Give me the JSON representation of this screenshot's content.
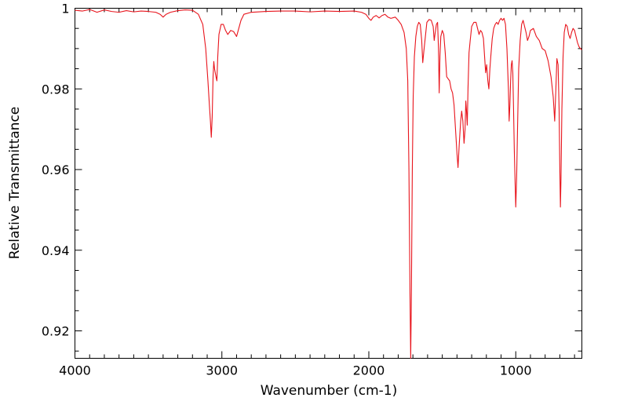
{
  "chart_data": {
    "type": "line",
    "title": "",
    "xlabel": "Wavenumber (cm-1)",
    "ylabel": "Relative Transmittance",
    "xlim": [
      4000,
      550
    ],
    "ylim": [
      0.9132,
      1.0
    ],
    "x_reversed": true,
    "grid": false,
    "legend": "none",
    "x_ticks": [
      4000,
      3000,
      2000,
      1000
    ],
    "x_tick_labels": [
      "4000",
      "3000",
      "2000",
      "1000"
    ],
    "y_ticks": [
      0.92,
      0.94,
      0.96,
      0.98,
      1.0
    ],
    "y_tick_labels": [
      "0.92",
      "0.94",
      "0.96",
      "0.98",
      "1"
    ],
    "series": [
      {
        "color": "#e8141c",
        "points": [
          [
            4000,
            0.9995
          ],
          [
            3950,
            0.9993
          ],
          [
            3900,
            0.9997
          ],
          [
            3850,
            0.999
          ],
          [
            3800,
            0.9996
          ],
          [
            3750,
            0.9992
          ],
          [
            3700,
            0.999
          ],
          [
            3650,
            0.9994
          ],
          [
            3600,
            0.9991
          ],
          [
            3550,
            0.9993
          ],
          [
            3500,
            0.9992
          ],
          [
            3450,
            0.999
          ],
          [
            3420,
            0.9985
          ],
          [
            3400,
            0.9978
          ],
          [
            3380,
            0.9985
          ],
          [
            3350,
            0.999
          ],
          [
            3300,
            0.9994
          ],
          [
            3250,
            0.9996
          ],
          [
            3200,
            0.9995
          ],
          [
            3160,
            0.9985
          ],
          [
            3130,
            0.996
          ],
          [
            3110,
            0.99
          ],
          [
            3095,
            0.982
          ],
          [
            3085,
            0.976
          ],
          [
            3078,
            0.972
          ],
          [
            3072,
            0.968
          ],
          [
            3066,
            0.973
          ],
          [
            3060,
            0.983
          ],
          [
            3055,
            0.9868
          ],
          [
            3050,
            0.985
          ],
          [
            3040,
            0.983
          ],
          [
            3034,
            0.982
          ],
          [
            3028,
            0.988
          ],
          [
            3020,
            0.9935
          ],
          [
            3005,
            0.996
          ],
          [
            2990,
            0.996
          ],
          [
            2975,
            0.9945
          ],
          [
            2960,
            0.9935
          ],
          [
            2940,
            0.9945
          ],
          [
            2920,
            0.9942
          ],
          [
            2900,
            0.993
          ],
          [
            2885,
            0.995
          ],
          [
            2870,
            0.997
          ],
          [
            2850,
            0.9985
          ],
          [
            2800,
            0.999
          ],
          [
            2700,
            0.9992
          ],
          [
            2600,
            0.9993
          ],
          [
            2500,
            0.9993
          ],
          [
            2400,
            0.9991
          ],
          [
            2300,
            0.9993
          ],
          [
            2200,
            0.9992
          ],
          [
            2100,
            0.9993
          ],
          [
            2050,
            0.999
          ],
          [
            2020,
            0.9985
          ],
          [
            2000,
            0.9975
          ],
          [
            1985,
            0.997
          ],
          [
            1970,
            0.9978
          ],
          [
            1950,
            0.9982
          ],
          [
            1930,
            0.9976
          ],
          [
            1910,
            0.9982
          ],
          [
            1890,
            0.9985
          ],
          [
            1870,
            0.9978
          ],
          [
            1850,
            0.9975
          ],
          [
            1820,
            0.9978
          ],
          [
            1800,
            0.997
          ],
          [
            1780,
            0.996
          ],
          [
            1760,
            0.994
          ],
          [
            1745,
            0.99
          ],
          [
            1735,
            0.982
          ],
          [
            1727,
            0.96
          ],
          [
            1720,
            0.93
          ],
          [
            1715,
            0.9132
          ],
          [
            1710,
            0.93
          ],
          [
            1704,
            0.96
          ],
          [
            1698,
            0.978
          ],
          [
            1690,
            0.988
          ],
          [
            1680,
            0.993
          ],
          [
            1670,
            0.9955
          ],
          [
            1660,
            0.9965
          ],
          [
            1650,
            0.996
          ],
          [
            1640,
            0.992
          ],
          [
            1633,
            0.9865
          ],
          [
            1625,
            0.9895
          ],
          [
            1615,
            0.993
          ],
          [
            1605,
            0.9965
          ],
          [
            1590,
            0.9972
          ],
          [
            1575,
            0.997
          ],
          [
            1562,
            0.9955
          ],
          [
            1555,
            0.992
          ],
          [
            1548,
            0.994
          ],
          [
            1540,
            0.996
          ],
          [
            1532,
            0.9965
          ],
          [
            1526,
            0.99
          ],
          [
            1521,
            0.979
          ],
          [
            1516,
            0.988
          ],
          [
            1510,
            0.993
          ],
          [
            1500,
            0.9945
          ],
          [
            1490,
            0.9935
          ],
          [
            1480,
            0.989
          ],
          [
            1470,
            0.983
          ],
          [
            1460,
            0.9825
          ],
          [
            1450,
            0.982
          ],
          [
            1440,
            0.98
          ],
          [
            1430,
            0.979
          ],
          [
            1420,
            0.976
          ],
          [
            1410,
            0.97
          ],
          [
            1400,
            0.964
          ],
          [
            1393,
            0.9605
          ],
          [
            1385,
            0.966
          ],
          [
            1375,
            0.972
          ],
          [
            1368,
            0.9745
          ],
          [
            1360,
            0.972
          ],
          [
            1352,
            0.9665
          ],
          [
            1345,
            0.97
          ],
          [
            1340,
            0.977
          ],
          [
            1335,
            0.9745
          ],
          [
            1330,
            0.971
          ],
          [
            1325,
            0.98
          ],
          [
            1318,
            0.989
          ],
          [
            1310,
            0.992
          ],
          [
            1300,
            0.9955
          ],
          [
            1285,
            0.9965
          ],
          [
            1270,
            0.9965
          ],
          [
            1260,
            0.995
          ],
          [
            1250,
            0.9935
          ],
          [
            1240,
            0.9945
          ],
          [
            1230,
            0.994
          ],
          [
            1220,
            0.9925
          ],
          [
            1212,
            0.988
          ],
          [
            1205,
            0.984
          ],
          [
            1198,
            0.986
          ],
          [
            1190,
            0.982
          ],
          [
            1183,
            0.98
          ],
          [
            1176,
            0.985
          ],
          [
            1170,
            0.988
          ],
          [
            1160,
            0.9925
          ],
          [
            1150,
            0.995
          ],
          [
            1140,
            0.996
          ],
          [
            1130,
            0.9965
          ],
          [
            1120,
            0.996
          ],
          [
            1110,
            0.997
          ],
          [
            1100,
            0.9975
          ],
          [
            1090,
            0.997
          ],
          [
            1080,
            0.9975
          ],
          [
            1070,
            0.996
          ],
          [
            1060,
            0.99
          ],
          [
            1050,
            0.98
          ],
          [
            1045,
            0.972
          ],
          [
            1040,
            0.976
          ],
          [
            1035,
            0.982
          ],
          [
            1030,
            0.986
          ],
          [
            1025,
            0.987
          ],
          [
            1020,
            0.984
          ],
          [
            1015,
            0.975
          ],
          [
            1010,
            0.965
          ],
          [
            1006,
            0.959
          ],
          [
            1000,
            0.9507
          ],
          [
            994,
            0.958
          ],
          [
            988,
            0.97
          ],
          [
            980,
            0.985
          ],
          [
            970,
            0.992
          ],
          [
            960,
            0.996
          ],
          [
            950,
            0.997
          ],
          [
            940,
            0.9955
          ],
          [
            930,
            0.994
          ],
          [
            920,
            0.992
          ],
          [
            910,
            0.993
          ],
          [
            900,
            0.9945
          ],
          [
            880,
            0.995
          ],
          [
            860,
            0.993
          ],
          [
            840,
            0.992
          ],
          [
            820,
            0.99
          ],
          [
            800,
            0.9895
          ],
          [
            780,
            0.987
          ],
          [
            760,
            0.983
          ],
          [
            745,
            0.978
          ],
          [
            735,
            0.972
          ],
          [
            727,
            0.98
          ],
          [
            720,
            0.9875
          ],
          [
            712,
            0.986
          ],
          [
            705,
            0.975
          ],
          [
            700,
            0.96
          ],
          [
            696,
            0.9507
          ],
          [
            692,
            0.958
          ],
          [
            686,
            0.975
          ],
          [
            678,
            0.988
          ],
          [
            670,
            0.994
          ],
          [
            660,
            0.996
          ],
          [
            650,
            0.9955
          ],
          [
            640,
            0.9935
          ],
          [
            630,
            0.9925
          ],
          [
            620,
            0.994
          ],
          [
            610,
            0.995
          ],
          [
            600,
            0.9945
          ],
          [
            590,
            0.993
          ],
          [
            580,
            0.9915
          ],
          [
            570,
            0.9905
          ],
          [
            560,
            0.99
          ],
          [
            550,
            0.9897
          ]
        ]
      }
    ]
  }
}
